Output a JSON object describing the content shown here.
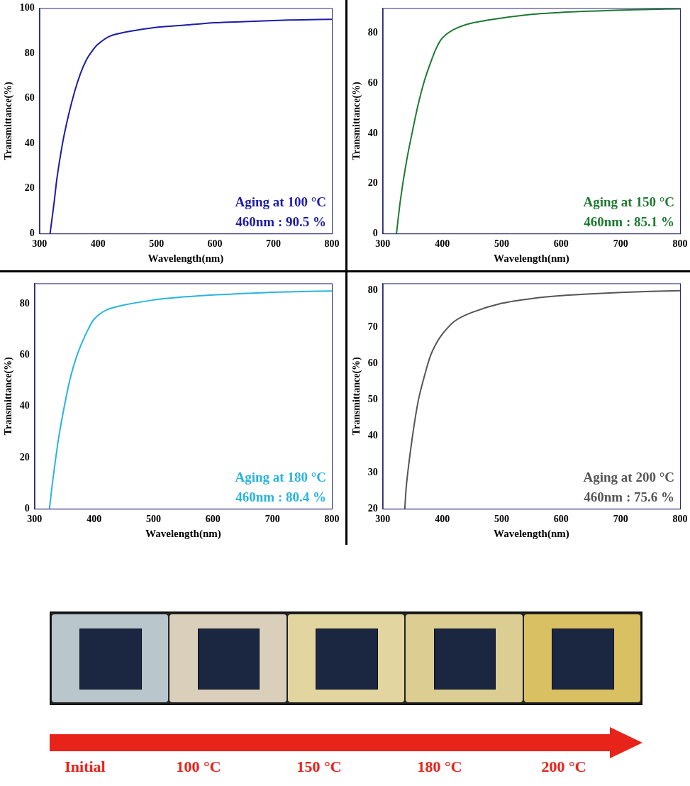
{
  "chart_data": [
    {
      "type": "line",
      "xlabel": "Wavelength(nm)",
      "ylabel": "Transmittance(%)",
      "x": [
        318,
        325,
        330,
        340,
        350,
        360,
        370,
        380,
        390,
        400,
        420,
        450,
        500,
        550,
        600,
        650,
        700,
        750,
        800
      ],
      "values": [
        0,
        14,
        25,
        41,
        53,
        63,
        71,
        77,
        81,
        84,
        87.5,
        89.5,
        91.5,
        92.5,
        93.5,
        94,
        94.5,
        94.8,
        95
      ],
      "color": "#1c1ca8",
      "xlim": [
        300,
        800
      ],
      "xticks": [
        300,
        400,
        500,
        600,
        700,
        800
      ],
      "ylim": [
        0,
        100
      ],
      "yticks": [
        0,
        20,
        40,
        60,
        80,
        100
      ],
      "grid": false,
      "annotations": [
        "Aging at 100 °C",
        "460nm : 90.5 %"
      ]
    },
    {
      "type": "line",
      "xlabel": "Wavelength(nm)",
      "ylabel": "Transmittance(%)",
      "x": [
        323,
        330,
        340,
        350,
        360,
        370,
        380,
        390,
        400,
        420,
        450,
        500,
        550,
        600,
        650,
        700,
        750,
        800
      ],
      "values": [
        0,
        14,
        29,
        41,
        52,
        61,
        68,
        74,
        78,
        81.5,
        84,
        86,
        87.5,
        88.3,
        88.8,
        89.2,
        89.5,
        89.7
      ],
      "color": "#1e7a32",
      "xlim": [
        300,
        800
      ],
      "xticks": [
        300,
        400,
        500,
        600,
        700,
        800
      ],
      "ylim": [
        0,
        90
      ],
      "yticks": [
        0,
        20,
        40,
        60,
        80
      ],
      "grid": false,
      "annotations": [
        "Aging at 150 °C",
        "460nm : 85.1 %"
      ]
    },
    {
      "type": "line",
      "xlabel": "Wavelength(nm)",
      "ylabel": "Transmittance(%)",
      "x": [
        325,
        330,
        340,
        350,
        360,
        370,
        380,
        390,
        400,
        420,
        450,
        500,
        550,
        600,
        650,
        700,
        750,
        800
      ],
      "values": [
        0,
        10,
        27,
        40,
        51,
        59,
        65,
        70,
        74,
        77.5,
        79.5,
        81.5,
        82.7,
        83.5,
        84,
        84.5,
        84.8,
        85
      ],
      "color": "#29b4e0",
      "xlim": [
        300,
        800
      ],
      "xticks": [
        300,
        400,
        500,
        600,
        700,
        800
      ],
      "ylim": [
        0,
        88
      ],
      "yticks": [
        0,
        20,
        40,
        60,
        80
      ],
      "grid": false,
      "annotations": [
        "Aging at 180 °C",
        "460nm : 80.4 %"
      ]
    },
    {
      "type": "line",
      "xlabel": "Wavelength(nm)",
      "ylabel": "Transmittance(%)",
      "x": [
        337,
        340,
        350,
        360,
        370,
        380,
        390,
        400,
        420,
        450,
        500,
        550,
        600,
        650,
        700,
        750,
        800
      ],
      "values": [
        20,
        27,
        40,
        50,
        56.5,
        62,
        65.5,
        68,
        71.5,
        74,
        76.5,
        77.8,
        78.6,
        79.1,
        79.5,
        79.8,
        80
      ],
      "color": "#555555",
      "xlim": [
        300,
        800
      ],
      "xticks": [
        300,
        400,
        500,
        600,
        700,
        800
      ],
      "ylim": [
        20,
        82
      ],
      "yticks": [
        20,
        30,
        40,
        50,
        60,
        70,
        80
      ],
      "grid": false,
      "annotations": [
        "Aging at 200 °C",
        "460nm : 75.6 %"
      ]
    }
  ],
  "photo_strip": {
    "labels": [
      "Initial",
      "100 °C",
      "150 °C",
      "180 °C",
      "200 °C"
    ]
  }
}
